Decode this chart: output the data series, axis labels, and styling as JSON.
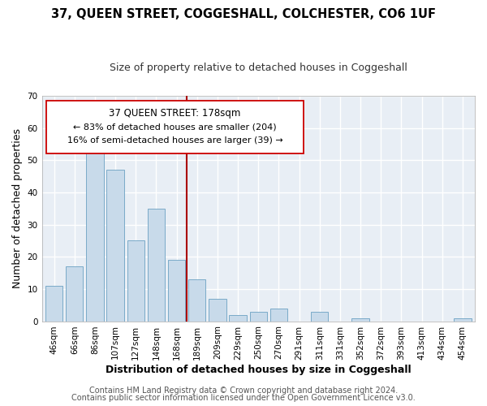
{
  "title": "37, QUEEN STREET, COGGESHALL, COLCHESTER, CO6 1UF",
  "subtitle": "Size of property relative to detached houses in Coggeshall",
  "xlabel": "Distribution of detached houses by size in Coggeshall",
  "ylabel": "Number of detached properties",
  "bar_labels": [
    "46sqm",
    "66sqm",
    "86sqm",
    "107sqm",
    "127sqm",
    "148sqm",
    "168sqm",
    "189sqm",
    "209sqm",
    "229sqm",
    "250sqm",
    "270sqm",
    "291sqm",
    "311sqm",
    "331sqm",
    "352sqm",
    "372sqm",
    "393sqm",
    "413sqm",
    "434sqm",
    "454sqm"
  ],
  "bar_values": [
    11,
    17,
    57,
    47,
    25,
    35,
    19,
    13,
    7,
    2,
    3,
    4,
    0,
    3,
    0,
    1,
    0,
    0,
    0,
    0,
    1
  ],
  "bar_color": "#c8daea",
  "bar_edge_color": "#7aaac8",
  "ylim": [
    0,
    70
  ],
  "yticks": [
    0,
    10,
    20,
    30,
    40,
    50,
    60,
    70
  ],
  "vline_color": "#aa0000",
  "annotation_title": "37 QUEEN STREET: 178sqm",
  "annotation_line1": "← 83% of detached houses are smaller (204)",
  "annotation_line2": "16% of semi-detached houses are larger (39) →",
  "footer1": "Contains HM Land Registry data © Crown copyright and database right 2024.",
  "footer2": "Contains public sector information licensed under the Open Government Licence v3.0.",
  "bg_color": "#ffffff",
  "plot_bg_color": "#e8eef5",
  "grid_color": "#ffffff",
  "title_fontsize": 10.5,
  "subtitle_fontsize": 9,
  "axis_label_fontsize": 9,
  "tick_fontsize": 7.5,
  "footer_fontsize": 7,
  "annot_fontsize_title": 8.5,
  "annot_fontsize_body": 8.0
}
